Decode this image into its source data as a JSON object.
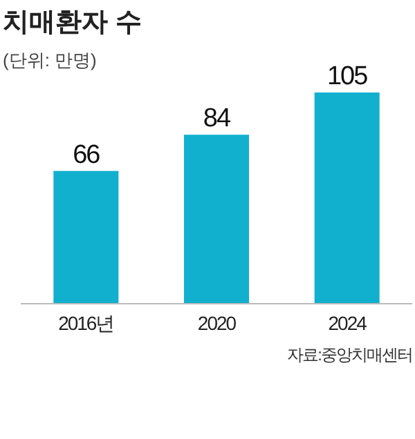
{
  "chart_data": {
    "type": "bar",
    "title": "치매환자 수",
    "subtitle": "(단위: 만명)",
    "categories": [
      "2016년",
      "2020",
      "2024"
    ],
    "values": [
      66,
      84,
      105
    ],
    "color": "#11b0cf",
    "data_labels": true,
    "annotations": [
      "자료:중앙치매센터"
    ]
  }
}
